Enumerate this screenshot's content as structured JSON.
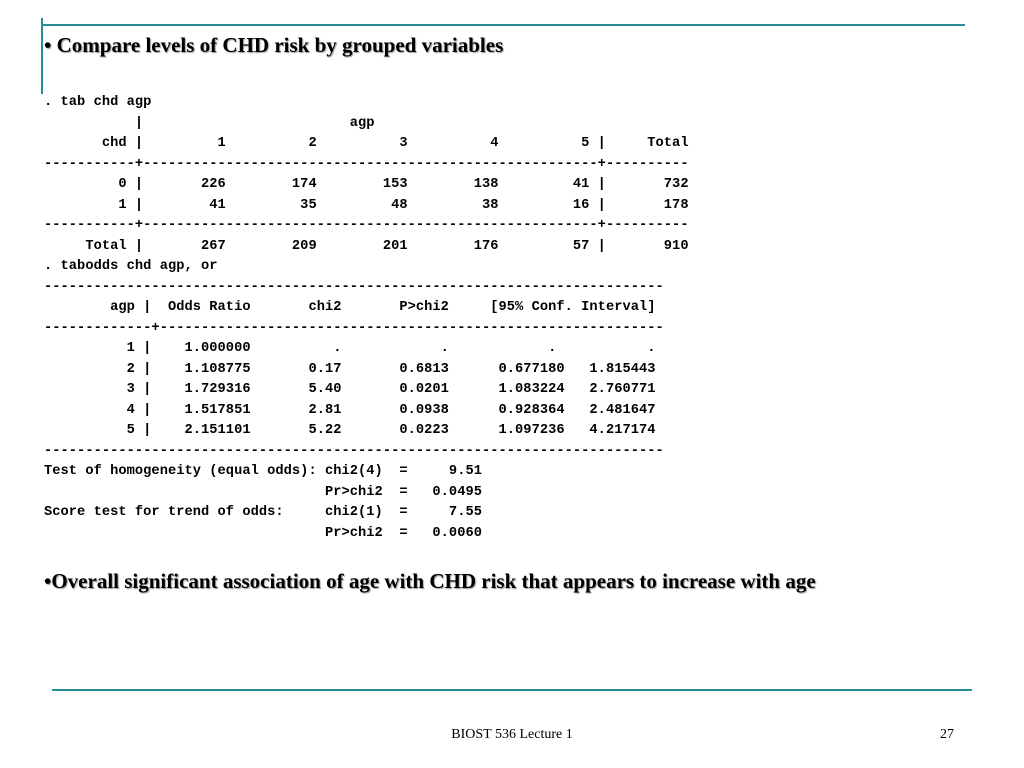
{
  "slide": {
    "heading": "• Compare levels of CHD risk by grouped variables",
    "output_lines": [
      ". tab chd agp",
      "           |                         agp",
      "       chd |         1          2          3          4          5 |     Total",
      "-----------+-------------------------------------------------------+----------",
      "         0 |       226        174        153        138         41 |       732",
      "         1 |        41         35         48         38         16 |       178",
      "-----------+-------------------------------------------------------+----------",
      "     Total |       267        209        201        176         57 |       910",
      ". tabodds chd agp, or",
      "---------------------------------------------------------------------------",
      "        agp |  Odds Ratio       chi2       P>chi2     [95% Conf. Interval]",
      "-------------+-------------------------------------------------------------",
      "          1 |    1.000000          .            .            .           .",
      "          2 |    1.108775       0.17       0.6813      0.677180   1.815443",
      "          3 |    1.729316       5.40       0.0201      1.083224   2.760771",
      "          4 |    1.517851       2.81       0.0938      0.928364   2.481647",
      "          5 |    2.151101       5.22       0.0223      1.097236   4.217174",
      "---------------------------------------------------------------------------",
      "Test of homogeneity (equal odds): chi2(4)  =     9.51",
      "                                  Pr>chi2  =   0.0495",
      "Score test for trend of odds:     chi2(1)  =     7.55",
      "                                  Pr>chi2  =   0.0060"
    ],
    "conclusion": "•Overall significant association of age with CHD risk that appears to increase with age"
  },
  "footer": {
    "course": "BIOST 536 Lecture 1",
    "page_number": "27"
  },
  "colors": {
    "accent_rule": "#2a8c96",
    "text": "#000000",
    "background": "#ffffff"
  }
}
